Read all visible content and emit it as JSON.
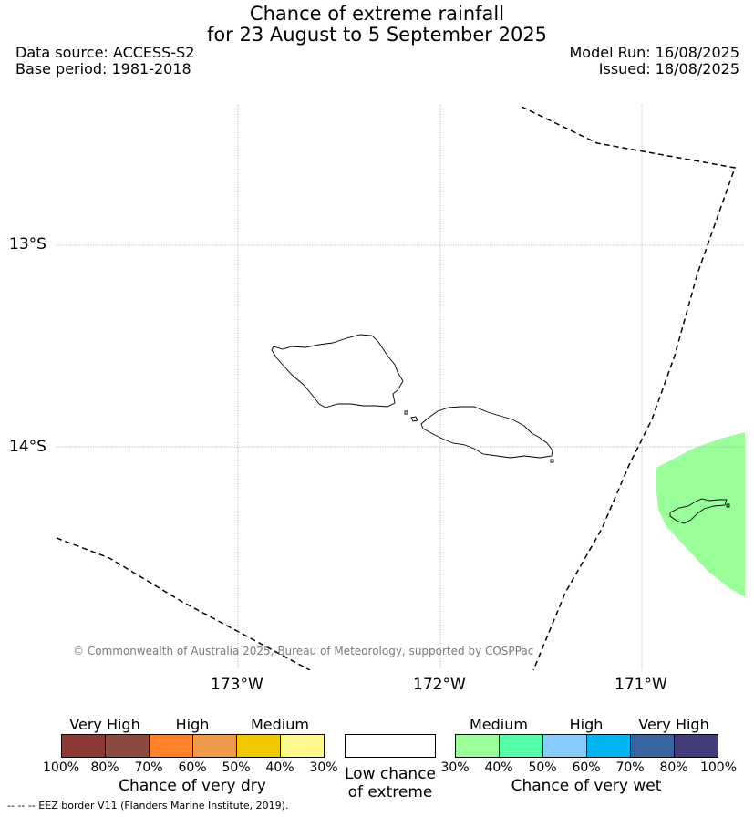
{
  "header": {
    "title_line1": "Chance of extreme rainfall",
    "title_line2": "for 23 August to 5 September 2025",
    "data_source": "Data source: ACCESS-S2",
    "base_period": "Base period: 1981-2018",
    "model_run": "Model Run: 16/08/2025",
    "issued": "Issued: 18/08/2025"
  },
  "map": {
    "lat_labels": [
      "13°S",
      "14°S"
    ],
    "lon_labels": [
      "173°W",
      "172°W",
      "171°W"
    ],
    "copyright": "© Commonwealth of Australia 2025, Bureau of Meteorology, supported by COSPPac",
    "wet_area_color": "#99ff99",
    "eez_line_style": "dashed"
  },
  "legend": {
    "dry": {
      "headers": [
        "Very High",
        "High",
        "Medium"
      ],
      "ticks": [
        "100%",
        "80%",
        "70%",
        "60%",
        "50%",
        "40%",
        "30%"
      ],
      "colors": [
        "#8b3a33",
        "#8b4c3f",
        "#ff8128",
        "#ef9a4a",
        "#f0c800",
        "#fff98c"
      ],
      "caption": "Chance of very dry"
    },
    "low": {
      "caption_line1": "Low chance",
      "caption_line2": "of extreme",
      "color": "#ffffff"
    },
    "wet": {
      "headers": [
        "Medium",
        "High",
        "Very High"
      ],
      "ticks": [
        "30%",
        "40%",
        "50%",
        "60%",
        "70%",
        "80%",
        "100%"
      ],
      "colors": [
        "#99ff99",
        "#55ffaa",
        "#88ccff",
        "#00b4f0",
        "#3a64a0",
        "#423c78"
      ],
      "caption": "Chance of very wet"
    }
  },
  "footer": {
    "eez_note": "--  --  -- EEZ border V11 (Flanders Marine Institute, 2019)."
  }
}
